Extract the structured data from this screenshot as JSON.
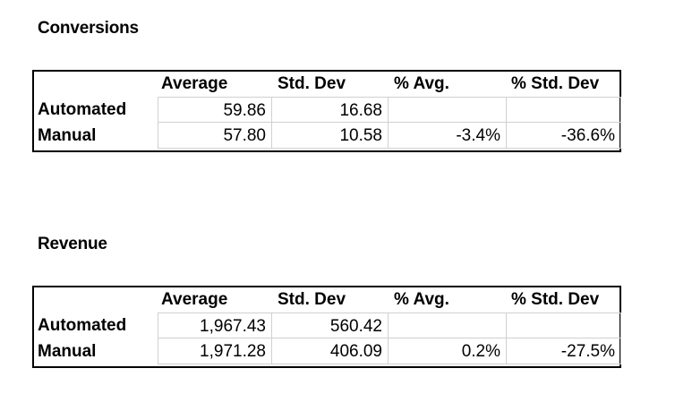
{
  "sections": [
    {
      "title": "Conversions",
      "columns": [
        "Average",
        "Std. Dev",
        "% Avg.",
        "% Std. Dev"
      ],
      "rows": [
        {
          "label": "Automated",
          "values": [
            "59.86",
            "16.68",
            "",
            ""
          ]
        },
        {
          "label": "Manual",
          "values": [
            "57.80",
            "10.58",
            "-3.4%",
            "-36.6%"
          ]
        }
      ]
    },
    {
      "title": "Revenue",
      "columns": [
        "Average",
        "Std. Dev",
        "% Avg.",
        "% Std. Dev"
      ],
      "rows": [
        {
          "label": "Automated",
          "values": [
            "1,967.43",
            "560.42",
            "",
            ""
          ]
        },
        {
          "label": "Manual",
          "values": [
            "1,971.28",
            "406.09",
            "0.2%",
            "-27.5%"
          ]
        }
      ]
    }
  ]
}
